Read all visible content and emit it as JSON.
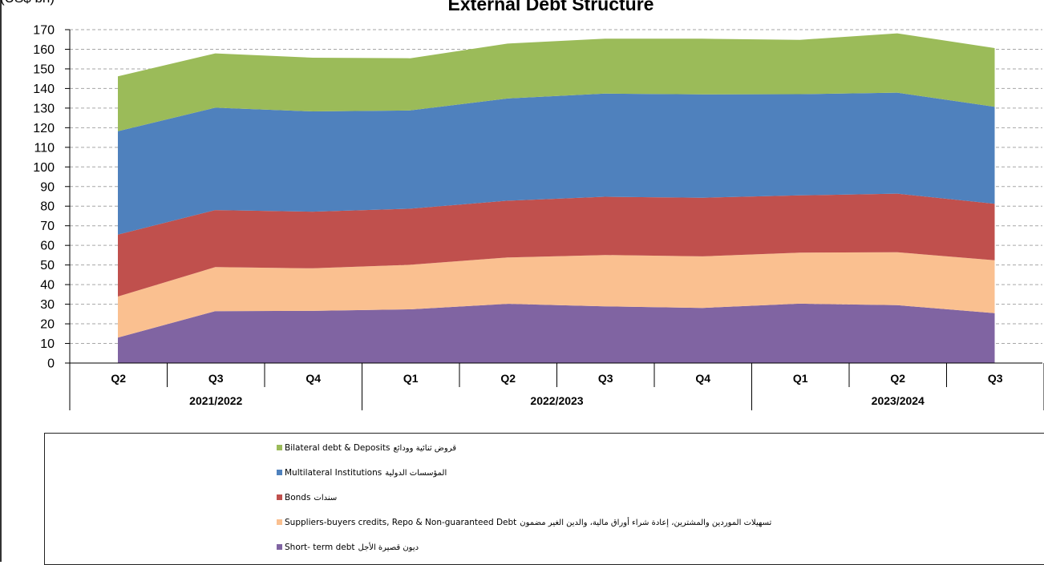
{
  "chart_data": {
    "type": "area",
    "stacked": true,
    "title": "External Debt Structure",
    "unit_label": "(US$ bn)",
    "ylim": [
      0,
      170
    ],
    "yticks": [
      0,
      10,
      20,
      30,
      40,
      50,
      60,
      70,
      80,
      90,
      100,
      110,
      120,
      130,
      140,
      150,
      160,
      170
    ],
    "grid": true,
    "legend_position": "bottom",
    "categories": [
      "Q2",
      "Q3",
      "Q4",
      "Q1",
      "Q2",
      "Q3",
      "Q4",
      "Q1",
      "Q2",
      "Q3"
    ],
    "fiscal_years": [
      {
        "label": "2021/2022",
        "span": 3
      },
      {
        "label": "2022/2023",
        "span": 4
      },
      {
        "label": "2023/2024",
        "span": 3
      }
    ],
    "series": [
      {
        "name": "Short- term debt",
        "name_ar": "ديون قصيرة الأجل",
        "color": "#8064a2",
        "values": [
          13,
          26.5,
          26.6,
          27.4,
          30.2,
          28.9,
          28.1,
          30.3,
          29.5,
          25.4
        ]
      },
      {
        "name": "Suppliers-buyers credits, Repo & Non-guaranteed Debt",
        "name_ar": "تسهيلات الموردين والمشترين، إعادة شراء أوراق مالية، والدين الغير مضمون",
        "color": "#fac090",
        "values": [
          20.9,
          22.4,
          21.7,
          22.7,
          23.6,
          26.2,
          26.3,
          26,
          27,
          27
        ]
      },
      {
        "name": "Bonds",
        "name_ar": "سندات",
        "color": "#c0504d",
        "values": [
          31.6,
          29.1,
          28.9,
          28.6,
          29,
          29.7,
          29.9,
          29.2,
          29.9,
          28.8
        ]
      },
      {
        "name": "Multilateral Institutions",
        "name_ar": "المؤسسات الدولية",
        "color": "#4f81bd",
        "values": [
          52.7,
          52.2,
          51.1,
          50.1,
          52.1,
          52.6,
          52.7,
          51.6,
          51.5,
          49.5
        ]
      },
      {
        "name": "Bilateral debt & Deposits",
        "name_ar": "قروض ثنائية وودائع",
        "color": "#9bbb59",
        "values": [
          28,
          27.7,
          27.4,
          26.6,
          28,
          28,
          28.4,
          27.7,
          30.2,
          29.9
        ]
      }
    ]
  }
}
